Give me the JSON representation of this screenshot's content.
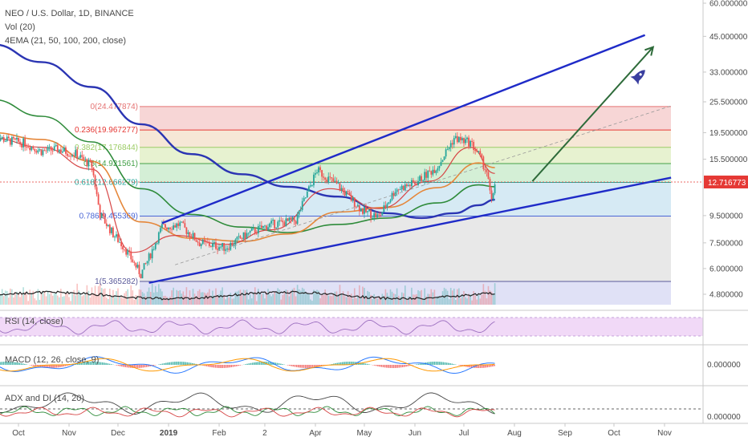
{
  "header": {
    "title": "NEO / U.S. Dollar, 1D, BINANCE",
    "volume_label": "Vol (20)",
    "ema_label": "4EMA (21, 50, 100, 200, close)"
  },
  "panes": {
    "rsi_label": "RSI (14, close)",
    "macd_label": "MACD (12, 26, close, 9)",
    "adx_label": "ADX and DI (14, 20)"
  },
  "price_badge": {
    "value": "12.716773",
    "color": "#e53935"
  },
  "colors": {
    "trend_line": "#1f2bc8",
    "ema200": "#2b35b3",
    "ema100": "#2e8b3a",
    "ema50": "#e5873a",
    "ema21": "#d64545",
    "up": "#26a69a",
    "down": "#ef5350",
    "arrow": "#2e6b3a"
  },
  "chart_data": {
    "type": "candlestick",
    "symbol": "NEO / U.S. Dollar",
    "interval": "1D",
    "exchange": "BINANCE",
    "price_axis": {
      "scale": "log",
      "ticks": [
        "60.000000",
        "45.000000",
        "33.000000",
        "25.500000",
        "19.500000",
        "15.500000",
        "12.716773",
        "9.500000",
        "7.500000",
        "6.000000",
        "4.800000"
      ],
      "tick_values": [
        60,
        45,
        33,
        25.5,
        19.5,
        15.5,
        12.716773,
        9.5,
        7.5,
        6.0,
        4.8
      ]
    },
    "time_axis": {
      "ticks": [
        "Oct",
        "Nov",
        "Dec",
        "2019",
        "Feb",
        "2",
        "Apr",
        "May",
        "Jun",
        "Jul",
        "Aug",
        "Sep",
        "Oct",
        "Nov"
      ],
      "tick_dates": [
        "2018-10-01",
        "2018-11-01",
        "2018-12-01",
        "2019-01-01",
        "2019-02-01",
        "2019-03-01",
        "2019-04-01",
        "2019-05-01",
        "2019-06-01",
        "2019-07-01",
        "2019-08-01",
        "2019-09-01",
        "2019-10-01",
        "2019-11-01"
      ]
    },
    "fibonacci": [
      {
        "label": "0(24.477874)",
        "ratio": 0,
        "price": 24.477874,
        "color": "#e57373"
      },
      {
        "label": "0.236(19.967277)",
        "ratio": 0.236,
        "price": 19.967277,
        "color": "#e53935"
      },
      {
        "label": "0.382(17.176844)",
        "ratio": 0.382,
        "price": 17.176844,
        "color": "#9ccc65"
      },
      {
        "label": "0.5(14.921561)",
        "ratio": 0.5,
        "price": 14.921561,
        "color": "#43a047"
      },
      {
        "label": "0.618(12.666279)",
        "ratio": 0.618,
        "price": 12.666279,
        "color": "#26a69a"
      },
      {
        "label": "0.786(9.455369)",
        "ratio": 0.786,
        "price": 9.455369,
        "color": "#4a66d6"
      },
      {
        "label": "1(5.365282)",
        "ratio": 1,
        "price": 5.365282,
        "color": "#5a5a9a"
      }
    ],
    "price_path": [
      {
        "date": "2018-09-15",
        "close": 19.0
      },
      {
        "date": "2018-09-25",
        "close": 18.2
      },
      {
        "date": "2018-10-05",
        "close": 17.8
      },
      {
        "date": "2018-10-15",
        "close": 16.6
      },
      {
        "date": "2018-10-25",
        "close": 16.9
      },
      {
        "date": "2018-11-05",
        "close": 16.2
      },
      {
        "date": "2018-11-15",
        "close": 14.6
      },
      {
        "date": "2018-11-20",
        "close": 9.6
      },
      {
        "date": "2018-11-28",
        "close": 8.1
      },
      {
        "date": "2018-12-05",
        "close": 7.2
      },
      {
        "date": "2018-12-15",
        "close": 5.7
      },
      {
        "date": "2018-12-20",
        "close": 6.6
      },
      {
        "date": "2018-12-28",
        "close": 8.6
      },
      {
        "date": "2019-01-08",
        "close": 8.8
      },
      {
        "date": "2019-01-20",
        "close": 7.5
      },
      {
        "date": "2019-02-05",
        "close": 7.2
      },
      {
        "date": "2019-02-20",
        "close": 8.2
      },
      {
        "date": "2019-03-05",
        "close": 8.8
      },
      {
        "date": "2019-03-20",
        "close": 9.1
      },
      {
        "date": "2019-04-02",
        "close": 14.1
      },
      {
        "date": "2019-04-15",
        "close": 12.3
      },
      {
        "date": "2019-04-30",
        "close": 9.9
      },
      {
        "date": "2019-05-10",
        "close": 9.4
      },
      {
        "date": "2019-05-20",
        "close": 11.9
      },
      {
        "date": "2019-06-01",
        "close": 12.6
      },
      {
        "date": "2019-06-15",
        "close": 14.6
      },
      {
        "date": "2019-06-25",
        "close": 18.6
      },
      {
        "date": "2019-07-05",
        "close": 17.9
      },
      {
        "date": "2019-07-10",
        "close": 16.2
      },
      {
        "date": "2019-07-15",
        "close": 13.9
      },
      {
        "date": "2019-07-18",
        "close": 10.6
      },
      {
        "date": "2019-07-20",
        "close": 12.72
      }
    ],
    "ema": [
      {
        "period": 200,
        "points": [
          {
            "date": "2018-09-15",
            "value": 42
          },
          {
            "date": "2018-10-15",
            "value": 36
          },
          {
            "date": "2018-11-15",
            "value": 29
          },
          {
            "date": "2018-12-15",
            "value": 21
          },
          {
            "date": "2019-01-15",
            "value": 16.2
          },
          {
            "date": "2019-02-15",
            "value": 13.6
          },
          {
            "date": "2019-03-15",
            "value": 12.2
          },
          {
            "date": "2019-04-15",
            "value": 11.2
          },
          {
            "date": "2019-05-15",
            "value": 9.7
          },
          {
            "date": "2019-06-05",
            "value": 9.3
          },
          {
            "date": "2019-06-25",
            "value": 9.7
          },
          {
            "date": "2019-07-10",
            "value": 10.4
          },
          {
            "date": "2019-07-20",
            "value": 10.9
          }
        ]
      },
      {
        "period": 100,
        "points": [
          {
            "date": "2018-09-15",
            "value": 26
          },
          {
            "date": "2018-10-15",
            "value": 22.5
          },
          {
            "date": "2018-11-15",
            "value": 18
          },
          {
            "date": "2018-12-15",
            "value": 12
          },
          {
            "date": "2019-01-15",
            "value": 9.6
          },
          {
            "date": "2019-02-15",
            "value": 8.6
          },
          {
            "date": "2019-03-15",
            "value": 8.2
          },
          {
            "date": "2019-04-15",
            "value": 8.8
          },
          {
            "date": "2019-05-15",
            "value": 9.3
          },
          {
            "date": "2019-06-15",
            "value": 10.6
          },
          {
            "date": "2019-07-10",
            "value": 12.4
          },
          {
            "date": "2019-07-20",
            "value": 12.2
          }
        ]
      },
      {
        "period": 50,
        "points": [
          {
            "date": "2018-09-15",
            "value": 19.5
          },
          {
            "date": "2018-10-15",
            "value": 18.4
          },
          {
            "date": "2018-11-15",
            "value": 15.2
          },
          {
            "date": "2018-12-15",
            "value": 9.0
          },
          {
            "date": "2019-01-15",
            "value": 7.8
          },
          {
            "date": "2019-02-15",
            "value": 7.6
          },
          {
            "date": "2019-03-15",
            "value": 8.1
          },
          {
            "date": "2019-04-15",
            "value": 9.8
          },
          {
            "date": "2019-05-15",
            "value": 10.2
          },
          {
            "date": "2019-06-15",
            "value": 12.1
          },
          {
            "date": "2019-07-10",
            "value": 15.0
          },
          {
            "date": "2019-07-20",
            "value": 14.4
          }
        ]
      },
      {
        "period": 21,
        "points": [
          {
            "date": "2018-09-15",
            "value": 18.6
          },
          {
            "date": "2018-10-15",
            "value": 17.2
          },
          {
            "date": "2018-11-15",
            "value": 14.2
          },
          {
            "date": "2018-12-10",
            "value": 6.9
          },
          {
            "date": "2019-01-05",
            "value": 8.0
          },
          {
            "date": "2019-02-05",
            "value": 7.4
          },
          {
            "date": "2019-03-05",
            "value": 8.4
          },
          {
            "date": "2019-04-10",
            "value": 12.0
          },
          {
            "date": "2019-05-10",
            "value": 10.1
          },
          {
            "date": "2019-06-10",
            "value": 12.8
          },
          {
            "date": "2019-07-05",
            "value": 17.2
          },
          {
            "date": "2019-07-20",
            "value": 13.7
          }
        ]
      }
    ],
    "trend_channel": {
      "upper": [
        {
          "date": "2018-12-28",
          "price": 8.9
        },
        {
          "date": "2019-10-20",
          "price": 45.5
        }
      ],
      "lower": [
        {
          "date": "2018-12-20",
          "price": 5.3
        },
        {
          "date": "2019-11-05",
          "price": 13.2
        }
      ]
    }
  }
}
